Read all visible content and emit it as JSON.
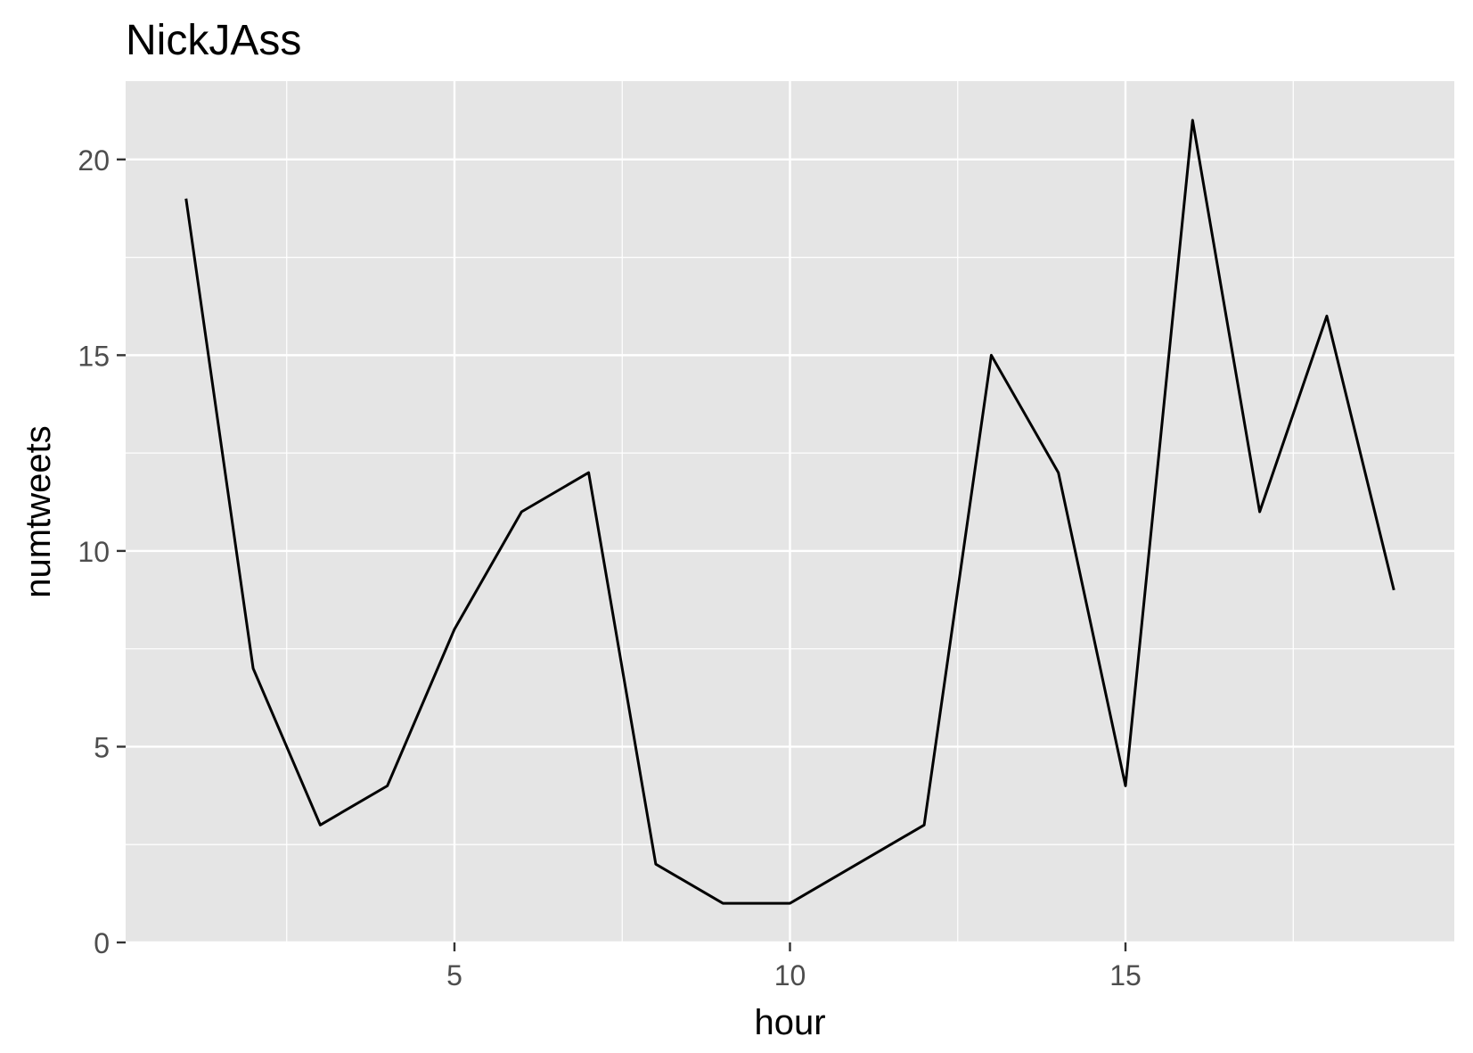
{
  "chart_data": {
    "type": "line",
    "title": "NickJAss",
    "xlabel": "hour",
    "ylabel": "numtweets",
    "x": [
      1,
      2,
      3,
      4,
      5,
      6,
      7,
      8,
      9,
      10,
      11,
      12,
      13,
      14,
      15,
      16,
      17,
      18,
      19
    ],
    "series": [
      {
        "values": [
          19,
          7,
          3,
          4,
          8,
          11,
          12,
          2,
          1,
          1,
          2,
          3,
          15,
          12,
          4,
          21,
          11,
          16,
          9
        ]
      }
    ],
    "xlim": [
      0.1,
      19.9
    ],
    "ylim": [
      0,
      22
    ],
    "xticks": [
      5,
      10,
      15
    ],
    "yticks": [
      0,
      5,
      10,
      15,
      20
    ],
    "grid": true,
    "legend": "none",
    "colors": {
      "panel": "#e5e5e5",
      "grid": "#ffffff",
      "line": "#000000",
      "tick_text": "#4d4d4d",
      "axis_title": "#000000"
    }
  }
}
